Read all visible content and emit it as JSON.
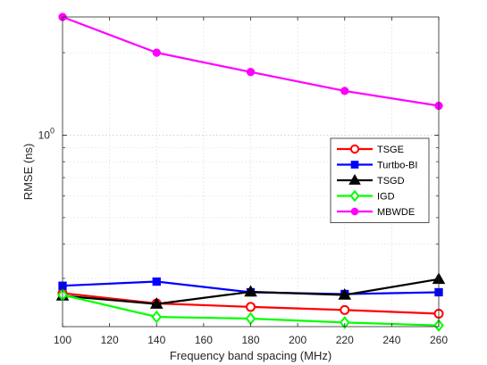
{
  "chart_data": {
    "type": "line",
    "xlabel": "Frequency band spacing (MHz)",
    "ylabel": "RMSE (ns)",
    "x": [
      100,
      140,
      180,
      220,
      260
    ],
    "x_ticks": [
      "100",
      "120",
      "140",
      "160",
      "180",
      "200",
      "220",
      "240",
      "260"
    ],
    "x_tick_values": [
      100,
      120,
      140,
      160,
      180,
      200,
      220,
      240,
      260
    ],
    "xlim": [
      100,
      260
    ],
    "y_scale": "log",
    "ylim": [
      0.2,
      2.7
    ],
    "y_tick_label": {
      "value": 1,
      "base": "10",
      "exponent": "0"
    },
    "grid": true,
    "legend_position": "right-middle",
    "series": [
      {
        "name": "TSGE",
        "color": "#ff0000",
        "marker": "circle",
        "values": [
          0.265,
          0.243,
          0.236,
          0.23,
          0.223
        ]
      },
      {
        "name": "Turtbo-BI",
        "color": "#0000ff",
        "marker": "square",
        "values": [
          0.282,
          0.292,
          0.267,
          0.263,
          0.267
        ]
      },
      {
        "name": "TSGD",
        "color": "#000000",
        "marker": "triangle",
        "values": [
          0.259,
          0.242,
          0.268,
          0.261,
          0.298
        ]
      },
      {
        "name": "IGD",
        "color": "#00ff00",
        "marker": "diamond",
        "values": [
          0.261,
          0.217,
          0.214,
          0.207,
          0.202
        ]
      },
      {
        "name": "MBWDE",
        "color": "#ff00ff",
        "marker": "circle-filled",
        "values": [
          2.7,
          2.0,
          1.7,
          1.45,
          1.28
        ]
      }
    ]
  }
}
